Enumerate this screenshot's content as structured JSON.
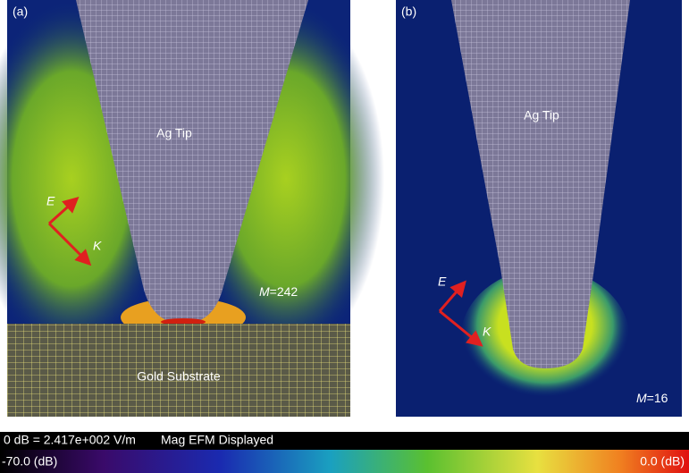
{
  "panels": [
    {
      "label": "(a)",
      "tip_label": "Ag Tip",
      "e_label": "E",
      "k_label": "K",
      "m_symbol": "M",
      "m_value": "=242",
      "substrate_label": "Gold Substrate"
    },
    {
      "label": "(b)",
      "tip_label": "Ag Tip",
      "e_label": "E",
      "k_label": "K",
      "m_symbol": "M",
      "m_value": "=16"
    }
  ],
  "colorbar": {
    "reference": "0 dB = 2.417e+002 V/m",
    "mode": "Mag EFM Displayed",
    "min_label": "-70.0 (dB)",
    "max_label": "0.0 (dB)"
  }
}
